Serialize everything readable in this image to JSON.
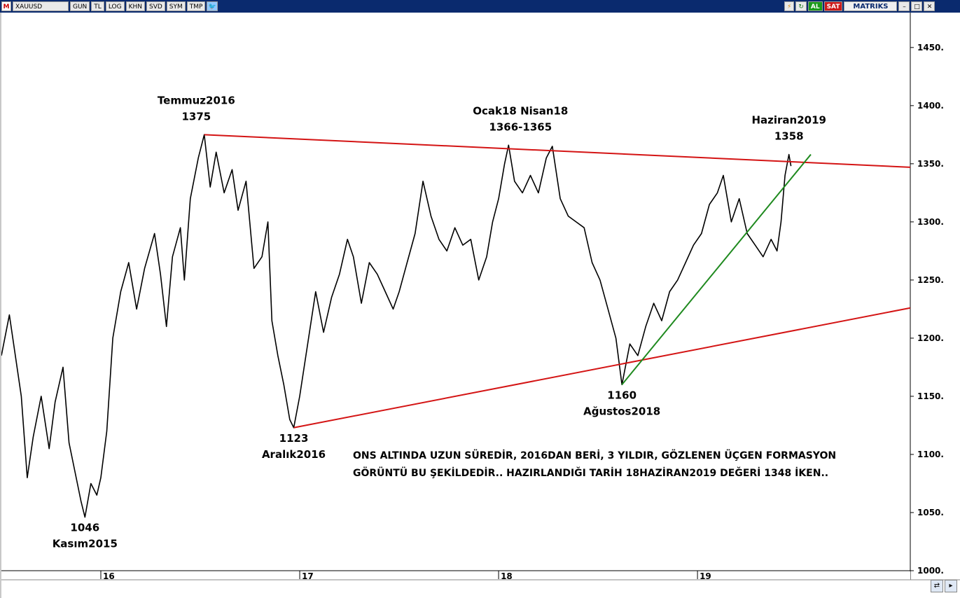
{
  "toolbar": {
    "logo": "M",
    "symbol": "XAUUSD",
    "buttons": [
      "GUN",
      "TL",
      "LOG",
      "KHN",
      "SVD",
      "SYM",
      "TMP"
    ],
    "al_label": "AL",
    "sat_label": "SAT",
    "brand": "MATRIKS",
    "window_controls": [
      "–",
      "□",
      "✕"
    ]
  },
  "chart_data": {
    "type": "line",
    "symbol": "XAUUSD",
    "series": [
      {
        "values": [
          [
            2015.5,
            1185
          ],
          [
            2015.54,
            1220
          ],
          [
            2015.6,
            1150
          ],
          [
            2015.63,
            1080
          ],
          [
            2015.66,
            1115
          ],
          [
            2015.7,
            1150
          ],
          [
            2015.74,
            1105
          ],
          [
            2015.77,
            1145
          ],
          [
            2015.81,
            1175
          ],
          [
            2015.84,
            1110
          ],
          [
            2015.87,
            1085
          ],
          [
            2015.9,
            1060
          ],
          [
            2015.92,
            1046
          ],
          [
            2015.95,
            1075
          ],
          [
            2015.98,
            1065
          ],
          [
            2016.0,
            1080
          ],
          [
            2016.03,
            1120
          ],
          [
            2016.06,
            1200
          ],
          [
            2016.1,
            1240
          ],
          [
            2016.14,
            1265
          ],
          [
            2016.18,
            1225
          ],
          [
            2016.22,
            1260
          ],
          [
            2016.27,
            1290
          ],
          [
            2016.3,
            1255
          ],
          [
            2016.33,
            1210
          ],
          [
            2016.36,
            1270
          ],
          [
            2016.4,
            1295
          ],
          [
            2016.42,
            1250
          ],
          [
            2016.45,
            1320
          ],
          [
            2016.49,
            1355
          ],
          [
            2016.52,
            1375
          ],
          [
            2016.55,
            1330
          ],
          [
            2016.58,
            1360
          ],
          [
            2016.62,
            1325
          ],
          [
            2016.66,
            1345
          ],
          [
            2016.69,
            1310
          ],
          [
            2016.73,
            1335
          ],
          [
            2016.77,
            1260
          ],
          [
            2016.81,
            1270
          ],
          [
            2016.84,
            1300
          ],
          [
            2016.86,
            1215
          ],
          [
            2016.89,
            1185
          ],
          [
            2016.92,
            1160
          ],
          [
            2016.95,
            1130
          ],
          [
            2016.97,
            1123
          ],
          [
            2017.0,
            1150
          ],
          [
            2017.04,
            1195
          ],
          [
            2017.08,
            1240
          ],
          [
            2017.12,
            1205
          ],
          [
            2017.16,
            1235
          ],
          [
            2017.2,
            1255
          ],
          [
            2017.24,
            1285
          ],
          [
            2017.27,
            1270
          ],
          [
            2017.31,
            1230
          ],
          [
            2017.35,
            1265
          ],
          [
            2017.39,
            1255
          ],
          [
            2017.43,
            1240
          ],
          [
            2017.47,
            1225
          ],
          [
            2017.5,
            1240
          ],
          [
            2017.54,
            1265
          ],
          [
            2017.58,
            1290
          ],
          [
            2017.62,
            1335
          ],
          [
            2017.66,
            1305
          ],
          [
            2017.7,
            1285
          ],
          [
            2017.74,
            1275
          ],
          [
            2017.78,
            1295
          ],
          [
            2017.82,
            1280
          ],
          [
            2017.86,
            1285
          ],
          [
            2017.9,
            1250
          ],
          [
            2017.94,
            1270
          ],
          [
            2017.97,
            1300
          ],
          [
            2018.0,
            1320
          ],
          [
            2018.03,
            1350
          ],
          [
            2018.05,
            1366
          ],
          [
            2018.08,
            1335
          ],
          [
            2018.12,
            1325
          ],
          [
            2018.16,
            1340
          ],
          [
            2018.2,
            1325
          ],
          [
            2018.24,
            1355
          ],
          [
            2018.27,
            1365
          ],
          [
            2018.31,
            1320
          ],
          [
            2018.35,
            1305
          ],
          [
            2018.39,
            1300
          ],
          [
            2018.43,
            1295
          ],
          [
            2018.47,
            1265
          ],
          [
            2018.51,
            1250
          ],
          [
            2018.55,
            1225
          ],
          [
            2018.59,
            1200
          ],
          [
            2018.62,
            1160
          ],
          [
            2018.66,
            1195
          ],
          [
            2018.7,
            1185
          ],
          [
            2018.74,
            1210
          ],
          [
            2018.78,
            1230
          ],
          [
            2018.82,
            1215
          ],
          [
            2018.86,
            1240
          ],
          [
            2018.9,
            1250
          ],
          [
            2018.94,
            1265
          ],
          [
            2018.98,
            1280
          ],
          [
            2019.02,
            1290
          ],
          [
            2019.06,
            1315
          ],
          [
            2019.1,
            1325
          ],
          [
            2019.13,
            1340
          ],
          [
            2019.17,
            1300
          ],
          [
            2019.21,
            1320
          ],
          [
            2019.25,
            1290
          ],
          [
            2019.29,
            1280
          ],
          [
            2019.33,
            1270
          ],
          [
            2019.37,
            1285
          ],
          [
            2019.4,
            1275
          ],
          [
            2019.42,
            1300
          ],
          [
            2019.44,
            1340
          ],
          [
            2019.46,
            1358
          ],
          [
            2019.47,
            1348
          ]
        ]
      }
    ],
    "trendlines": [
      {
        "color": "#d41414",
        "from": [
          2016.52,
          1375
        ],
        "to": [
          2020.07,
          1347
        ]
      },
      {
        "color": "#d41414",
        "from": [
          2016.97,
          1123
        ],
        "to": [
          2020.07,
          1226
        ]
      },
      {
        "color": "#1f8a1f",
        "from": [
          2018.62,
          1160
        ],
        "to": [
          2019.57,
          1358
        ]
      }
    ],
    "x_ticks": [
      {
        "value": 2016.0,
        "label": "16"
      },
      {
        "value": 2017.0,
        "label": "17"
      },
      {
        "value": 2018.0,
        "label": "18"
      },
      {
        "value": 2019.0,
        "label": "19"
      }
    ],
    "y_ticks": [
      1000,
      1050,
      1100,
      1150,
      1200,
      1250,
      1300,
      1350,
      1400,
      1450
    ],
    "y_tick_labels": [
      "1000.",
      "1050.",
      "1100.",
      "1150.",
      "1200.",
      "1250.",
      "1300.",
      "1350.",
      "1400.",
      "1450."
    ],
    "xlim": [
      2015.5,
      2020.07
    ],
    "ylim": [
      1000,
      1480
    ],
    "grid": false,
    "annotations": [
      {
        "lines": [
          "Temmuz2016",
          "1375"
        ],
        "anchor": [
          2016.48,
          1375
        ]
      },
      {
        "lines": [
          "Ocak18 Nisan18",
          "1366-1365"
        ],
        "anchor": [
          2018.11,
          1366
        ]
      },
      {
        "lines": [
          "Haziran2019",
          "1358"
        ],
        "anchor": [
          2019.46,
          1358
        ]
      },
      {
        "lines": [
          "1123",
          "Aralık2016"
        ],
        "anchor": [
          2016.97,
          1123
        ]
      },
      {
        "lines": [
          "1160",
          "Ağustos2018"
        ],
        "anchor": [
          2018.62,
          1160
        ]
      },
      {
        "lines": [
          "1046",
          "Kasım2015"
        ],
        "anchor": [
          2015.92,
          1046
        ]
      }
    ],
    "note": [
      "ONS ALTINDA UZUN SÜREDİR, 2016DAN BERİ, 3 YILDIR, GÖZLENEN ÜÇGEN FORMASYON",
      "GÖRÜNTÜ BU ŞEKİLDEDİR..  HAZIRLANDIĞI TARİH 18HAZİRAN2019 DEĞERİ 1348 İKEN.."
    ]
  }
}
